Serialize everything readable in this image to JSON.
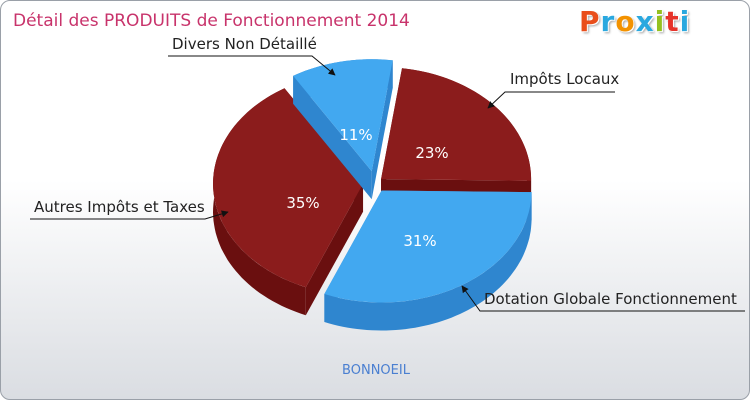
{
  "header": {
    "title": "Détail des PRODUITS de Fonctionnement 2014",
    "logo_text": "Proxiti",
    "logo_colors": [
      "#e94e1b",
      "#2aa8df",
      "#f39200",
      "#2aa8df",
      "#95c11f",
      "#e6332a",
      "#2aa8df"
    ]
  },
  "footer": {
    "town": "BONNOEIL"
  },
  "chart_data": {
    "type": "pie",
    "title": "Détail des PRODUITS de Fonctionnement 2014",
    "subtitle": "BONNOEIL",
    "slices": [
      {
        "label": "Impôts Locaux",
        "value": 23,
        "pct_label": "23%",
        "color": "#8b1c1c",
        "side_color": "#6a0f0f"
      },
      {
        "label": "Dotation Globale Fonctionnement",
        "value": 31,
        "pct_label": "31%",
        "color": "#42a8f0",
        "side_color": "#2f86cf"
      },
      {
        "label": "Autres Impôts et Taxes",
        "value": 35,
        "pct_label": "35%",
        "color": "#8b1c1c",
        "side_color": "#6a0f0f"
      },
      {
        "label": "Divers Non Détaillé",
        "value": 11,
        "pct_label": "11%",
        "color": "#42a8f0",
        "side_color": "#2f86cf"
      }
    ]
  }
}
